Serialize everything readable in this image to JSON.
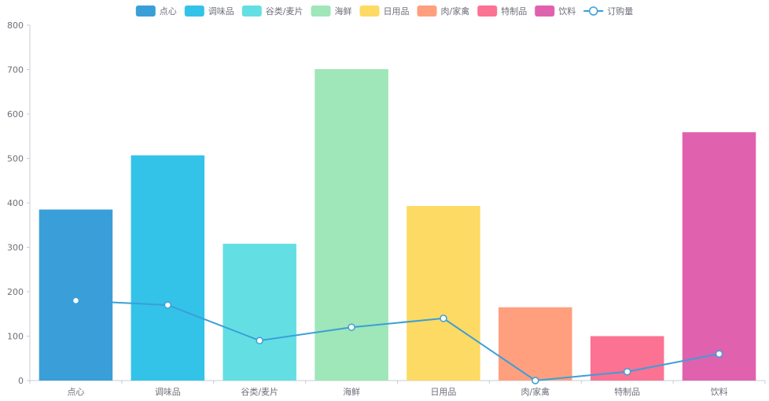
{
  "chart_data": {
    "type": "bar",
    "categories": [
      "点心",
      "调味品",
      "谷类/麦片",
      "海鲜",
      "日用品",
      "肉/家禽",
      "特制品",
      "饮料"
    ],
    "series": [
      {
        "type": "bar",
        "values": [
          385,
          507,
          308,
          701,
          393,
          165,
          100,
          559
        ]
      },
      {
        "type": "line",
        "name": "订购量",
        "values": [
          180,
          170,
          90,
          120,
          140,
          0,
          20,
          60
        ]
      }
    ],
    "ylim": [
      0,
      800
    ],
    "yticks": [
      0,
      100,
      200,
      300,
      400,
      500,
      600,
      700,
      800
    ],
    "grid": false,
    "legend_position": "top-center"
  },
  "colors": {
    "bars": [
      "#3a9fd8",
      "#33c3e8",
      "#63dfe3",
      "#9fe6b8",
      "#fdda63",
      "#ff9f7e",
      "#fb7293",
      "#e062ae"
    ],
    "line": "#3a9fd8",
    "axis": "#c9ccd3",
    "text": "#6e7079"
  }
}
